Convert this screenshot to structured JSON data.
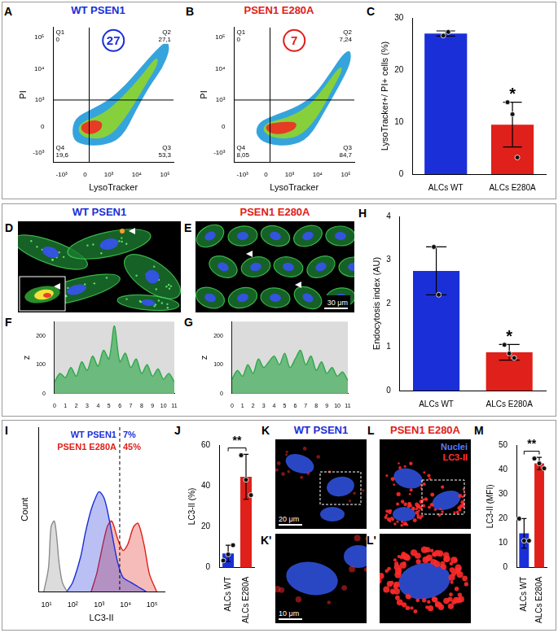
{
  "chart_data": [
    {
      "panel": "A",
      "type": "density",
      "title": "WT PSEN1",
      "highlight": 27,
      "x_label": "LysoTracker",
      "y_label": "PI",
      "log": true,
      "xlim": [
        -2000,
        200000
      ],
      "ylim": [
        -2000,
        200000
      ],
      "xticks": [
        {
          "value": -1000,
          "label": "-10³"
        },
        0,
        {
          "value": 1000,
          "label": "10³"
        },
        {
          "value": 10000,
          "label": "10⁴"
        },
        {
          "value": 100000,
          "label": "10⁵"
        }
      ],
      "yticks": [
        {
          "value": -1000,
          "label": "-10³"
        },
        0,
        {
          "value": 1000,
          "label": "10³"
        },
        {
          "value": 10000,
          "label": "10⁴"
        },
        {
          "value": 100000,
          "label": "10⁵"
        }
      ],
      "gates": {
        "x": 100,
        "y": 1000
      },
      "quadrants": {
        "names": [
          "Q1",
          "Q2",
          "Q3",
          "Q4"
        ],
        "values": [
          0,
          27.1,
          53.3,
          19.6
        ],
        "value_labels": [
          "0",
          "27,1",
          "53,3",
          "19,6"
        ]
      },
      "series": [
        {
          "color": "#35a4dc",
          "x": [
            -400,
            -200,
            500,
            3000,
            10000,
            30000,
            80000,
            150000,
            120000,
            50000,
            15000,
            4000,
            1000,
            200,
            -300
          ],
          "y": [
            -200,
            -500,
            -600,
            -300,
            500,
            3000,
            10000,
            40000,
            80000,
            40000,
            12000,
            3000,
            1000,
            500,
            200
          ]
        },
        {
          "color": "#86d03c",
          "x": [
            -200,
            0,
            1000,
            5000,
            20000,
            60000,
            50000,
            15000,
            3000,
            600,
            -100
          ],
          "y": [
            -100,
            -300,
            -300,
            300,
            3000,
            15000,
            25000,
            6000,
            1200,
            300,
            100
          ]
        },
        {
          "color": "#e63b24",
          "x": [
            -100,
            100,
            500,
            600,
            200,
            -100
          ],
          "y": [
            -100,
            -200,
            -100,
            100,
            150,
            50
          ]
        }
      ]
    },
    {
      "panel": "B",
      "type": "density",
      "title": "PSEN1 E280A",
      "highlight": 7,
      "x_label": "LysoTracker",
      "y_label": "PI",
      "log": true,
      "xlim": [
        -2000,
        200000
      ],
      "ylim": [
        -2000,
        200000
      ],
      "xticks": [
        {
          "value": -1000,
          "label": "-10³"
        },
        0,
        {
          "value": 1000,
          "label": "10³"
        },
        {
          "value": 10000,
          "label": "10⁴"
        },
        {
          "value": 100000,
          "label": "10⁵"
        }
      ],
      "yticks": [
        {
          "value": -1000,
          "label": "-10³"
        },
        0,
        {
          "value": 1000,
          "label": "10³"
        },
        {
          "value": 10000,
          "label": "10⁴"
        },
        {
          "value": 100000,
          "label": "10⁵"
        }
      ],
      "gates": {
        "x": 100,
        "y": 1000
      },
      "quadrants": {
        "names": [
          "Q1",
          "Q2",
          "Q3",
          "Q4"
        ],
        "values": [
          0,
          7.24,
          84.7,
          8.05
        ],
        "value_labels": [
          "0",
          "7,24",
          "84,7",
          "8,05"
        ]
      },
      "series": [
        {
          "color": "#35a4dc",
          "x": [
            -300,
            0,
            1000,
            5000,
            20000,
            60000,
            150000,
            150000,
            80000,
            30000,
            8000,
            2000,
            300,
            -200
          ],
          "y": [
            -200,
            -500,
            -600,
            -300,
            500,
            3000,
            15000,
            40000,
            30000,
            8000,
            1500,
            600,
            300,
            100
          ]
        },
        {
          "color": "#86d03c",
          "x": [
            -100,
            200,
            2000,
            10000,
            40000,
            80000,
            60000,
            20000,
            5000,
            800,
            0
          ],
          "y": [
            -100,
            -300,
            -300,
            200,
            3000,
            10000,
            12000,
            3000,
            600,
            200,
            80
          ]
        },
        {
          "color": "#e63b24",
          "x": [
            0,
            300,
            1500,
            2000,
            500,
            0
          ],
          "y": [
            -100,
            -200,
            -100,
            100,
            100,
            50
          ]
        }
      ]
    },
    {
      "panel": "C",
      "type": "bar",
      "categories": [
        "ALCs WT",
        "ALCs E280A"
      ],
      "colors": [
        "#1a2fd8",
        "#e0201a"
      ],
      "values": [
        27,
        9.5
      ],
      "errors": [
        0.5,
        4.3
      ],
      "points": [
        [
          26.6,
          27.3
        ],
        [
          13.8,
          11.5,
          3.2
        ]
      ],
      "y_label": "LysoTracker+/ PI+ cells (%)",
      "ylim": [
        0,
        30
      ],
      "yticks": [
        0,
        10,
        20,
        30
      ],
      "significance": "*"
    },
    {
      "panel": "F",
      "type": "area",
      "y_label": "z",
      "xlim": [
        0,
        11
      ],
      "xticks": [
        0,
        1,
        2,
        3,
        4,
        5,
        6,
        7,
        8,
        9,
        10,
        11
      ],
      "ylim": [
        0,
        250
      ],
      "yticks": [
        0,
        100,
        200
      ],
      "series": [
        {
          "color": "#2fa84a",
          "x": [
            0,
            0.5,
            1,
            1.5,
            2,
            2.5,
            3,
            3.5,
            4,
            4.5,
            5,
            5.5,
            6,
            6.5,
            7,
            7.5,
            8,
            8.5,
            9,
            9.5,
            10,
            10.5,
            11
          ],
          "values": [
            40,
            70,
            55,
            90,
            60,
            110,
            80,
            130,
            95,
            150,
            120,
            235,
            110,
            140,
            90,
            120,
            70,
            100,
            60,
            85,
            50,
            70,
            40
          ]
        }
      ]
    },
    {
      "panel": "G",
      "type": "area",
      "y_label": "z",
      "xlim": [
        0,
        11
      ],
      "xticks": [
        0,
        1,
        2,
        3,
        4,
        5,
        6,
        7,
        8,
        9,
        10,
        11
      ],
      "ylim": [
        0,
        250
      ],
      "yticks": [
        0,
        100,
        200
      ],
      "series": [
        {
          "color": "#2fa84a",
          "x": [
            0,
            0.5,
            1,
            1.5,
            2,
            2.5,
            3,
            3.5,
            4,
            4.5,
            5,
            5.5,
            6,
            6.5,
            7,
            7.5,
            8,
            8.5,
            9,
            9.5,
            10,
            10.5,
            11
          ],
          "values": [
            50,
            80,
            60,
            100,
            70,
            120,
            90,
            110,
            130,
            100,
            140,
            90,
            120,
            150,
            100,
            130,
            80,
            110,
            70,
            90,
            60,
            75,
            45
          ]
        }
      ]
    },
    {
      "panel": "H",
      "type": "bar",
      "categories": [
        "ALCs WT",
        "ALCs E280A"
      ],
      "colors": [
        "#1a2fd8",
        "#e0201a"
      ],
      "values": [
        2.75,
        0.88
      ],
      "errors": [
        0.55,
        0.18
      ],
      "points": [
        [
          3.3,
          2.2
        ],
        [
          1.05,
          0.85,
          0.75
        ]
      ],
      "y_label": "Endocytosis index (AU)",
      "ylim": [
        0,
        4
      ],
      "yticks": [
        0,
        1,
        2,
        3,
        4
      ],
      "significance": "*"
    },
    {
      "panel": "I",
      "type": "area",
      "log": "x",
      "tick_labels": "x",
      "x_label": "LC3-II",
      "y_label": "Count",
      "xlim": [
        5,
        300000
      ],
      "xticks": [
        {
          "value": 10,
          "label": "10¹"
        },
        {
          "value": 100,
          "label": "10²"
        },
        {
          "value": 1000,
          "label": "10³"
        },
        {
          "value": 10000,
          "label": "10⁴"
        },
        {
          "value": 100000,
          "label": "10⁵"
        }
      ],
      "ylim": [
        0,
        140
      ],
      "gate": 6000,
      "series": [
        {
          "color": "#8c8c8c",
          "x": [
            8,
            12,
            15,
            20,
            25,
            30,
            40,
            60
          ],
          "values": [
            0,
            20,
            55,
            60,
            45,
            25,
            8,
            0
          ]
        },
        {
          "name": "WT PSEN1",
          "color": "#1a2fd8",
          "gate_value": 7,
          "gate_label": "7%",
          "x": [
            60,
            100,
            200,
            300,
            500,
            800,
            1000,
            1500,
            2000,
            3000,
            5000,
            8000,
            15000,
            30000,
            60000
          ],
          "values": [
            0,
            8,
            30,
            50,
            70,
            82,
            85,
            80,
            70,
            50,
            25,
            12,
            8,
            4,
            0
          ]
        },
        {
          "name": "PSEN1 E280A",
          "color": "#e0201a",
          "gate_value": 45,
          "gate_label": "45%",
          "x": [
            500,
            800,
            1000,
            2000,
            3000,
            5000,
            8000,
            12000,
            20000,
            30000,
            50000,
            80000,
            150000
          ],
          "values": [
            0,
            15,
            25,
            55,
            60,
            45,
            35,
            40,
            55,
            58,
            40,
            15,
            0
          ]
        }
      ]
    },
    {
      "panel": "J",
      "type": "bar",
      "categories": [
        "ALCs WT",
        "ALCs E280A"
      ],
      "colors": [
        "#1a2fd8",
        "#e0201a"
      ],
      "values": [
        7,
        44.5
      ],
      "errors": [
        4,
        11
      ],
      "points": [
        [
          3.5,
          6.5,
          11
        ],
        [
          55,
          43,
          35.5
        ]
      ],
      "y_label": "LC3-II (%)",
      "ylim": [
        0,
        60
      ],
      "yticks": [
        0,
        20,
        40,
        60
      ],
      "significance": "**"
    },
    {
      "panel": "M",
      "type": "bar",
      "categories": [
        "ALCs WT",
        "ALCs E280A"
      ],
      "colors": [
        "#1a2fd8",
        "#e0201a"
      ],
      "values": [
        14,
        42.5
      ],
      "errors": [
        6,
        2.5
      ],
      "points": [
        [
          20,
          11,
          11
        ],
        [
          44.5,
          42.5,
          40.5
        ]
      ],
      "y_label": "LC3-II (MFI)",
      "ylim": [
        0,
        50
      ],
      "yticks": [
        0,
        10,
        20,
        30,
        40,
        50
      ],
      "significance": "**"
    }
  ],
  "images": [
    {
      "panel": "D",
      "title": "WT PSEN1"
    },
    {
      "panel": "E",
      "title": "PSEN1 E280A",
      "scale_bar": "30 μm"
    },
    {
      "panel": "K",
      "title": "WT PSEN1",
      "scale_bar": "20 μm"
    },
    {
      "panel": "L",
      "title": "PSEN1 E280A",
      "channels": [
        "Nuclei",
        "LC3-II"
      ]
    },
    {
      "panel": "K'",
      "scale_bar": "10 μm"
    },
    {
      "panel": "L'"
    }
  ]
}
